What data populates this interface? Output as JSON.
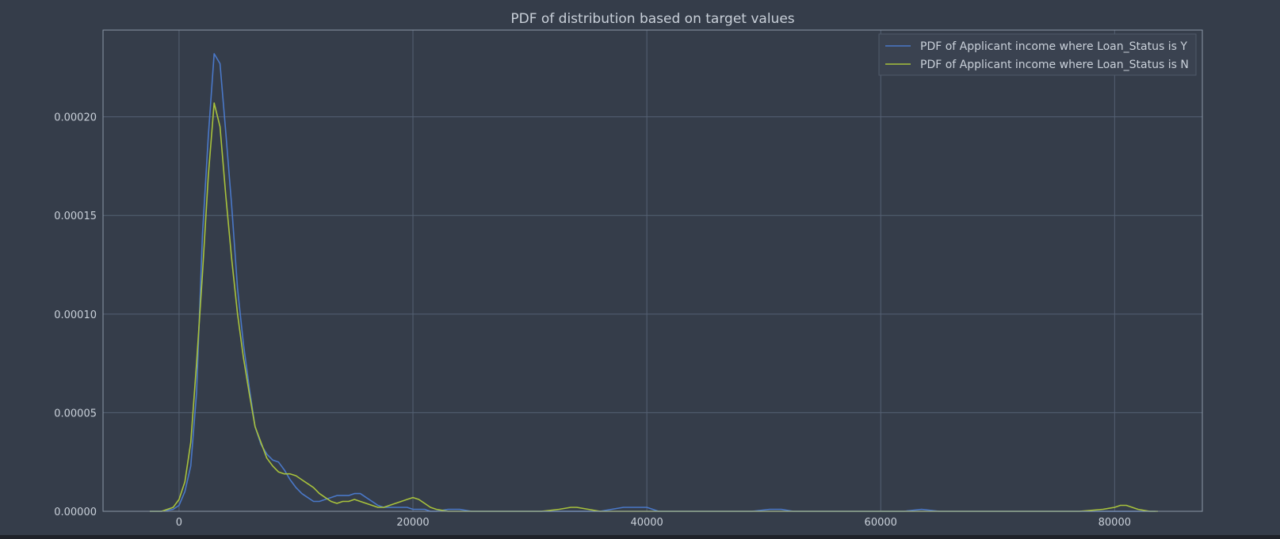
{
  "chart_data": {
    "type": "line",
    "title": "PDF of distribution based on target values",
    "xlabel": "",
    "ylabel": "",
    "xlim": [
      -6500,
      87500
    ],
    "ylim": [
      0,
      0.000244
    ],
    "xticks": [
      0,
      20000,
      40000,
      60000,
      80000
    ],
    "xtick_labels": [
      "0",
      "20000",
      "40000",
      "60000",
      "80000"
    ],
    "yticks": [
      0,
      5e-05,
      0.0001,
      0.00015,
      0.0002
    ],
    "ytick_labels": [
      "0.00000",
      "0.00005",
      "0.00010",
      "0.00015",
      "0.00020"
    ],
    "grid": true,
    "legend_position": "top-right",
    "series": [
      {
        "name": "PDF of Applicant income where Loan_Status is Y",
        "color": "#4a78c8",
        "x": [
          -2500,
          -1500,
          -500,
          0,
          500,
          1000,
          1500,
          2000,
          2500,
          3000,
          3500,
          4000,
          4500,
          5000,
          5500,
          6000,
          6500,
          7000,
          7500,
          8000,
          8500,
          9000,
          9500,
          10000,
          10500,
          11000,
          11500,
          12000,
          12500,
          13000,
          13500,
          14000,
          14500,
          15000,
          15500,
          16000,
          16500,
          17000,
          17500,
          18000,
          18500,
          19000,
          19500,
          20000,
          20500,
          21000,
          21500,
          22000,
          23000,
          24000,
          25000,
          27000,
          30000,
          33000,
          35000,
          36000,
          37000,
          38000,
          39000,
          40000,
          41000,
          43000,
          46000,
          49000,
          50500,
          51500,
          52500,
          54000,
          57000,
          60000,
          62000,
          63500,
          65000,
          68000,
          72000,
          76000,
          80000,
          81000,
          82000,
          83500
        ],
        "values": [
          0,
          0,
          1e-06,
          3e-06,
          1e-05,
          2.3e-05,
          6e-05,
          0.00014,
          0.00019,
          0.000232,
          0.000227,
          0.000192,
          0.000155,
          0.000113,
          8.5e-05,
          6.3e-05,
          4.3e-05,
          3.4e-05,
          2.9e-05,
          2.6e-05,
          2.5e-05,
          2.1e-05,
          1.6e-05,
          1.2e-05,
          9e-06,
          7e-06,
          5e-06,
          5e-06,
          6e-06,
          7e-06,
          8e-06,
          8e-06,
          8e-06,
          9e-06,
          9e-06,
          7e-06,
          5e-06,
          3e-06,
          2e-06,
          2e-06,
          2e-06,
          2e-06,
          2e-06,
          1e-06,
          1e-06,
          1e-06,
          0,
          0,
          1e-06,
          1e-06,
          0,
          0,
          0,
          0,
          0,
          0,
          1e-06,
          2e-06,
          2e-06,
          2e-06,
          0,
          0,
          0,
          0,
          1e-06,
          1e-06,
          0,
          0,
          0,
          0,
          0,
          1e-06,
          0,
          0,
          0,
          0,
          0,
          0,
          0,
          0
        ]
      },
      {
        "name": "PDF of Applicant income where Loan_Status is N",
        "color": "#a8c23c",
        "x": [
          -2500,
          -1500,
          -500,
          0,
          500,
          1000,
          1500,
          2000,
          2500,
          3000,
          3500,
          4000,
          4500,
          5000,
          5500,
          6000,
          6500,
          7000,
          7500,
          8000,
          8500,
          9000,
          9500,
          10000,
          10500,
          11000,
          11500,
          12000,
          12500,
          13000,
          13500,
          14000,
          14500,
          15000,
          15500,
          16000,
          16500,
          17000,
          17500,
          18000,
          18500,
          19000,
          19500,
          20000,
          20500,
          21000,
          21500,
          22000,
          23000,
          25000,
          28000,
          31000,
          32500,
          33500,
          34000,
          35000,
          36000,
          37000,
          40000,
          50000,
          60000,
          70000,
          77000,
          79000,
          80000,
          80500,
          81000,
          81500,
          82000,
          83000,
          83700
        ],
        "values": [
          0,
          0,
          2e-06,
          6e-06,
          1.5e-05,
          3.5e-05,
          7.5e-05,
          0.00012,
          0.00017,
          0.000207,
          0.000195,
          0.00016,
          0.000128,
          0.0001,
          7.8e-05,
          6e-05,
          4.3e-05,
          3.5e-05,
          2.7e-05,
          2.3e-05,
          2e-05,
          1.9e-05,
          1.9e-05,
          1.8e-05,
          1.6e-05,
          1.4e-05,
          1.2e-05,
          9e-06,
          7e-06,
          5e-06,
          4e-06,
          5e-06,
          5e-06,
          6e-06,
          5e-06,
          4e-06,
          3e-06,
          2e-06,
          2e-06,
          3e-06,
          4e-06,
          5e-06,
          6e-06,
          7e-06,
          6e-06,
          4e-06,
          2e-06,
          1e-06,
          0,
          0,
          0,
          0,
          1e-06,
          2e-06,
          2e-06,
          1e-06,
          0,
          0,
          0,
          0,
          0,
          0,
          0,
          1e-06,
          2e-06,
          3e-06,
          3e-06,
          2e-06,
          1e-06,
          0,
          0
        ]
      }
    ]
  },
  "colors": {
    "background": "#353d4a",
    "grid": "#556173",
    "spine": "#8a96a6",
    "text": "#c9d0d9",
    "legend_bg": "#3a4250",
    "legend_border": "#4f5969"
  }
}
